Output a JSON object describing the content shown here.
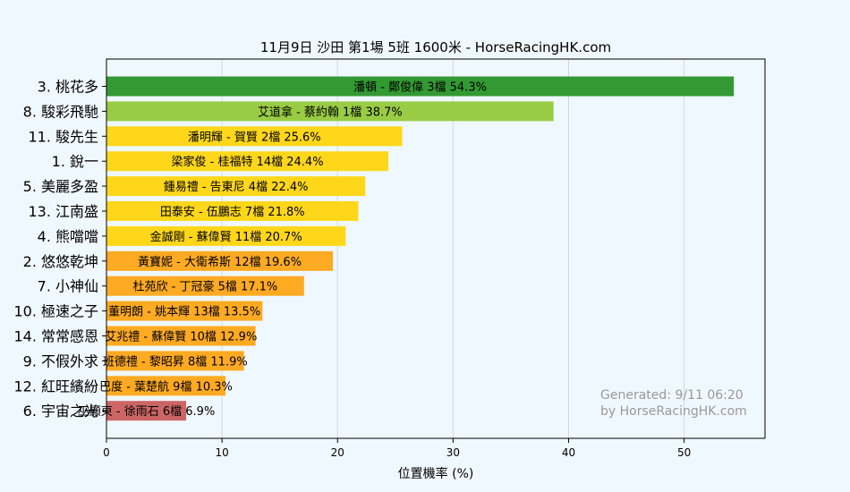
{
  "chart_data": {
    "type": "bar",
    "orientation": "horizontal",
    "title": "11月9日  沙田  第1場  5班  1600米 - HorseRacingHK.com",
    "xlabel": "位置機率 (%)",
    "ylabel": "",
    "xlim": [
      0,
      57
    ],
    "xticks": [
      0,
      10,
      20,
      30,
      40,
      50
    ],
    "grid": "vertical",
    "categories": [
      "3. 桃花多",
      "8. 駿彩飛馳",
      "11. 駿先生",
      "1. 銳一",
      "5. 美麗多盈",
      "13. 江南盛",
      "4. 熊噹噹",
      "2. 悠悠乾坤",
      "7. 小神仙",
      "10. 極速之子",
      "14. 常常感恩",
      "9. 不假外求",
      "12. 紅旺繽紛",
      "6. 宇宙之光"
    ],
    "values": [
      54.3,
      38.7,
      25.6,
      24.4,
      22.4,
      21.8,
      20.7,
      19.6,
      17.1,
      13.5,
      12.9,
      11.9,
      10.3,
      6.9
    ],
    "bar_labels": [
      "潘頓 - 鄭俊偉 3檔  54.3%",
      "艾道拿 - 蔡約翰 1檔  38.7%",
      "潘明輝 - 賀賢 2檔  25.6%",
      "梁家俊 - 桂福特 14檔  24.4%",
      "鍾易禮 - 告東尼 4檔  22.4%",
      "田泰安 - 伍鵬志 7檔  21.8%",
      "金誠剛 - 蘇偉賢 11檔  20.7%",
      "黃寶妮 - 大衛希斯 12檔  19.6%",
      "杜苑欣 - 丁冠豪 5檔  17.1%",
      "董明朗 - 姚本輝 13檔  13.5%",
      "艾兆禮 - 蘇偉賢 10檔  12.9%",
      "班德禮 - 黎昭昇 8檔  11.9%",
      "巴度 - 葉楚航 9檔  10.3%",
      "巫顯東 - 徐雨石 6檔  6.9%"
    ],
    "bar_colors": [
      "#339933",
      "#99cc44",
      "#ffd71a",
      "#ffd71a",
      "#ffd71a",
      "#ffd71a",
      "#ffd71a",
      "#ffaa22",
      "#ffaa22",
      "#ffaa22",
      "#ffaa22",
      "#ffaa22",
      "#ffaa22",
      "#cc6666"
    ],
    "watermark": [
      "Generated: 9/11 06:20",
      "by HorseRacingHK.com"
    ]
  }
}
